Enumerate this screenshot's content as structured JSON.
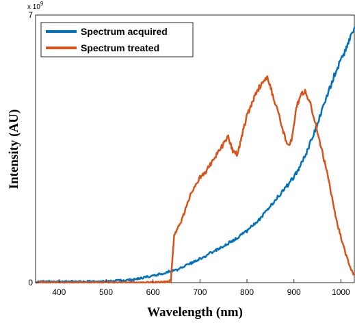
{
  "chart_data": {
    "type": "line",
    "xlabel": "Wavelength (nm)",
    "ylabel": "Intensity (AU)",
    "xlim": [
      350,
      1030
    ],
    "ylim": [
      0,
      7
    ],
    "x_ticks": [
      400,
      500,
      600,
      700,
      800,
      900,
      1000
    ],
    "y_ticks": [
      0,
      7
    ],
    "y_multiplier": "x 10",
    "y_multiplier_exp": "9",
    "grid": false,
    "legend_position": "top-left",
    "series": [
      {
        "name": "Spectrum acquired",
        "color": "#0072BD",
        "x": [
          350,
          500,
          560,
          600,
          630,
          635,
          650,
          680,
          700,
          720,
          750,
          780,
          800,
          830,
          850,
          870,
          890,
          910,
          930,
          950,
          970,
          990,
          1010,
          1025,
          1030
        ],
        "y": [
          0.02,
          0.03,
          0.08,
          0.18,
          0.27,
          0.3,
          0.33,
          0.5,
          0.62,
          0.76,
          0.95,
          1.18,
          1.35,
          1.7,
          2.0,
          2.3,
          2.6,
          2.95,
          3.5,
          4.15,
          4.9,
          5.55,
          6.1,
          6.55,
          6.7
        ]
      },
      {
        "name": "Spectrum treated",
        "color": "#D95319",
        "x": [
          350,
          600,
          630,
          638,
          645,
          660,
          680,
          700,
          710,
          720,
          740,
          760,
          770,
          780,
          790,
          800,
          820,
          835,
          845,
          855,
          870,
          885,
          895,
          905,
          915,
          925,
          935,
          950,
          970,
          990,
          1010,
          1025,
          1030
        ],
        "y": [
          0.0,
          0.0,
          0.02,
          0.05,
          1.25,
          1.6,
          2.3,
          2.75,
          2.85,
          3.05,
          3.45,
          3.8,
          3.45,
          3.35,
          3.9,
          4.35,
          5.0,
          5.25,
          5.35,
          4.9,
          4.3,
          3.6,
          3.7,
          4.6,
          4.9,
          5.0,
          4.7,
          3.95,
          2.9,
          1.65,
          0.75,
          0.25,
          0.2
        ]
      }
    ]
  }
}
